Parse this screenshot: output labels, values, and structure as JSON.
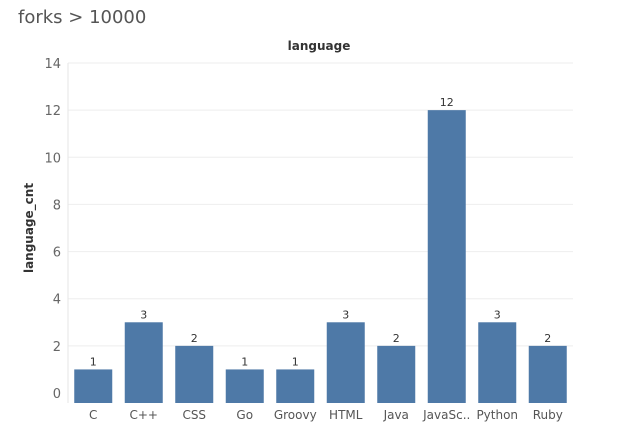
{
  "page": {
    "title": "forks > 10000"
  },
  "chart_data": {
    "type": "bar",
    "title": "language",
    "ylabel": "language_cnt",
    "xlabel": "",
    "categories": [
      "C",
      "C++",
      "CSS",
      "Go",
      "Groovy",
      "HTML",
      "Java",
      "JavaSc..",
      "Python",
      "Ruby"
    ],
    "values": [
      1,
      3,
      2,
      1,
      1,
      3,
      2,
      12,
      3,
      2
    ],
    "data_labels": [
      "1",
      "3",
      "2",
      "1",
      "1",
      "3",
      "2",
      "12",
      "3",
      "2"
    ],
    "ylim": [
      0,
      14
    ],
    "yticks": [
      0,
      2,
      4,
      6,
      8,
      10,
      12,
      14
    ],
    "ytick_labels": [
      "0",
      "2",
      "4",
      "6",
      "8",
      "10",
      "12",
      "14"
    ],
    "grid": true,
    "bar_color": "#4e79a7",
    "legend": "none"
  }
}
